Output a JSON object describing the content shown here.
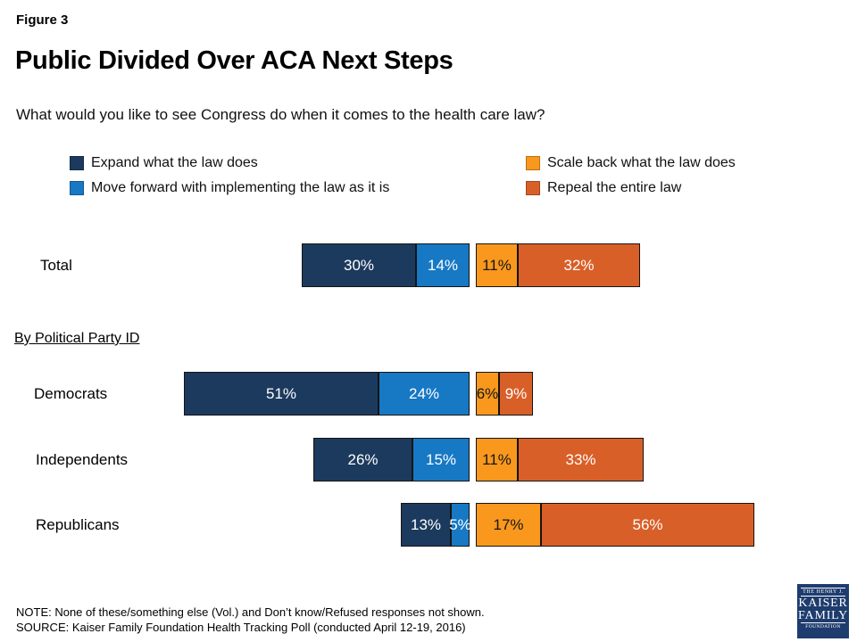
{
  "page": {
    "figure_label": "Figure 3",
    "title": "Public Divided Over ACA Next Steps",
    "question": "What would you like to see Congress do when it comes to the health care law?",
    "group_header": "By Political Party ID",
    "note": "NOTE: None of these/something else (Vol.) and Don’t know/Refused responses not shown.",
    "source": "SOURCE: Kaiser Family Foundation Health Tracking Poll (conducted April 12-19, 2016)"
  },
  "logo": {
    "line1": "THE HENRY J.",
    "line2": "KAISER",
    "line3": "FAMILY",
    "line4": "FOUNDATION",
    "bg_color": "#1E3C6E"
  },
  "chart_data": {
    "type": "bar",
    "variant": "diverging-stacked-horizontal",
    "title": "Public Divided Over ACA Next Steps",
    "question": "What would you like to see Congress do when it comes to the health care law?",
    "unit": "%",
    "grid": false,
    "axes_visible": false,
    "value_labels": "inside-segments",
    "legend_position": "top-two-columns",
    "categories": [
      "Total",
      "Democrats",
      "Independents",
      "Republicans"
    ],
    "series": [
      {
        "name": "Expand what the law does",
        "color": "#1C3A5E",
        "text_color": "#FFFFFF",
        "side": "left",
        "values": [
          30,
          51,
          26,
          13
        ]
      },
      {
        "name": "Move forward with implementing the law as it is",
        "color": "#1778C4",
        "text_color": "#FFFFFF",
        "side": "left",
        "values": [
          14,
          24,
          15,
          5
        ]
      },
      {
        "name": "Scale back what the law does",
        "color": "#F9981D",
        "text_color": "#161616",
        "side": "right",
        "values": [
          11,
          6,
          11,
          17
        ]
      },
      {
        "name": "Repeal the entire law",
        "color": "#D95F28",
        "text_color": "#FFFFFF",
        "side": "right",
        "values": [
          32,
          9,
          33,
          56
        ]
      }
    ]
  }
}
